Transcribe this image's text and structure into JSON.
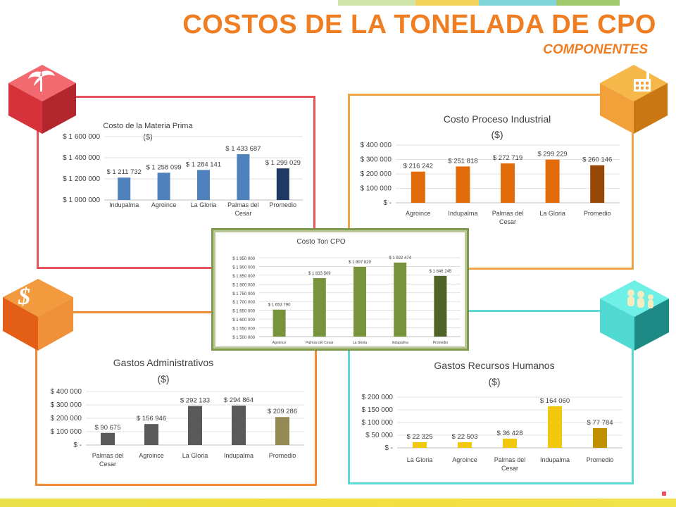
{
  "header": {
    "title": "COSTOS DE LA TONELADA DE CPO",
    "subtitle": "COMPONENTES"
  },
  "colors": {
    "accent": "#ef7d22",
    "red_panel": "#e8525a",
    "orange_panel": "#f0a44a",
    "teal_panel": "#5fd7d2",
    "blue_bar": "#4f81bd",
    "dark_blue_bar": "#1f3864",
    "orange_bar": "#e36c0a",
    "dark_orange_bar": "#974706",
    "gray_bar": "#595959",
    "olive_bar": "#948a54",
    "green_bar": "#77933c",
    "dark_green_bar": "#4f6228",
    "yellow_bar": "#f2c80f",
    "dark_yellow_bar": "#c09000"
  },
  "icons": {
    "top_left": "palm-tree-icon",
    "top_right": "factory-icon",
    "bottom_left": "dollar-icon",
    "bottom_right": "people-icon"
  },
  "chart_data": [
    {
      "id": "materia_prima",
      "type": "bar",
      "title": "Costo de la Materia Prima",
      "subtitle": "($)",
      "categories": [
        "Indupalma",
        "Agroince",
        "La Gloria",
        "Palmas del Cesar",
        "Promedio"
      ],
      "values": [
        1211732,
        1258099,
        1284141,
        1433687,
        1299029
      ],
      "value_labels": [
        "$ 1 211 732",
        "$ 1 258 099",
        "$ 1 284 141",
        "$ 1 433 687",
        "$ 1 299 029"
      ],
      "ylim": [
        1000000,
        1600000
      ],
      "yticks": [
        "$ 1 000 000",
        "$ 1 200 000",
        "$ 1 400 000",
        "$ 1 600 000"
      ],
      "ytick_values": [
        1000000,
        1200000,
        1400000,
        1600000
      ],
      "grid": true
    },
    {
      "id": "proceso_industrial",
      "type": "bar",
      "title": "Costo Proceso Industrial",
      "subtitle": "($)",
      "categories": [
        "Agroince",
        "Indupalma",
        "Palmas del Cesar",
        "La Gloria",
        "Promedio"
      ],
      "values": [
        216242,
        251818,
        272719,
        299229,
        260146
      ],
      "value_labels": [
        "$ 216 242",
        "$ 251 818",
        "$ 272 719",
        "$ 299 229",
        "$ 260 146"
      ],
      "ylim": [
        0,
        400000
      ],
      "yticks": [
        "$ -",
        "$ 100 000",
        "$ 200 000",
        "$ 300 000",
        "$ 400 000"
      ],
      "ytick_values": [
        0,
        100000,
        200000,
        300000,
        400000
      ],
      "grid": true
    },
    {
      "id": "ton_cpo",
      "type": "bar",
      "title": "Costo Ton CPO",
      "subtitle": "",
      "categories": [
        "Agroince",
        "Palmas del Cesar",
        "La Gloria",
        "Indupalma",
        "Promedio"
      ],
      "values": [
        1653790,
        1833509,
        1897829,
        1922474,
        1846245
      ],
      "value_labels": [
        "$ 1 653 790",
        "$ 1 833 509",
        "$ 1 897 829",
        "$ 1 922 474",
        "$ 1 846 245"
      ],
      "ylim": [
        1500000,
        1950000
      ],
      "yticks": [
        "$ 1 500 000",
        "$ 1 550 000",
        "$ 1 600 000",
        "$ 1 650 000",
        "$ 1 700 000",
        "$ 1 750 000",
        "$ 1 800 000",
        "$ 1 850 000",
        "$ 1 900 000",
        "$ 1 950 000"
      ],
      "ytick_values": [
        1500000,
        1550000,
        1600000,
        1650000,
        1700000,
        1750000,
        1800000,
        1850000,
        1900000,
        1950000
      ],
      "grid": true
    },
    {
      "id": "gastos_administrativos",
      "type": "bar",
      "title": "Gastos Administrativos",
      "subtitle": "($)",
      "categories": [
        "Palmas del Cesar",
        "Agroince",
        "La Gloria",
        "Indupalma",
        "Promedio"
      ],
      "values": [
        90675,
        156946,
        292133,
        294864,
        209286
      ],
      "value_labels": [
        "$ 90 675",
        "$ 156 946",
        "$ 292 133",
        "$ 294 864",
        "$ 209 286"
      ],
      "ylim": [
        0,
        400000
      ],
      "yticks": [
        "$ -",
        "$ 100 000",
        "$ 200 000",
        "$ 300 000",
        "$ 400 000"
      ],
      "ytick_values": [
        0,
        100000,
        200000,
        300000,
        400000
      ],
      "grid": true
    },
    {
      "id": "recursos_humanos",
      "type": "bar",
      "title": "Gastos Recursos Humanos",
      "subtitle": "($)",
      "categories": [
        "La Gloria",
        "Agroince",
        "Palmas del Cesar",
        "Indupalma",
        "Promedio"
      ],
      "values": [
        22325,
        22503,
        36428,
        164060,
        77784
      ],
      "value_labels": [
        "$ 22 325",
        "$ 22 503",
        "$ 36 428",
        "$ 164 060",
        "$ 77 784"
      ],
      "ylim": [
        0,
        200000
      ],
      "yticks": [
        "$ -",
        "$ 50 000",
        "$ 100 000",
        "$ 150 000",
        "$ 200 000"
      ],
      "ytick_values": [
        0,
        50000,
        100000,
        150000,
        200000
      ],
      "grid": true
    }
  ]
}
